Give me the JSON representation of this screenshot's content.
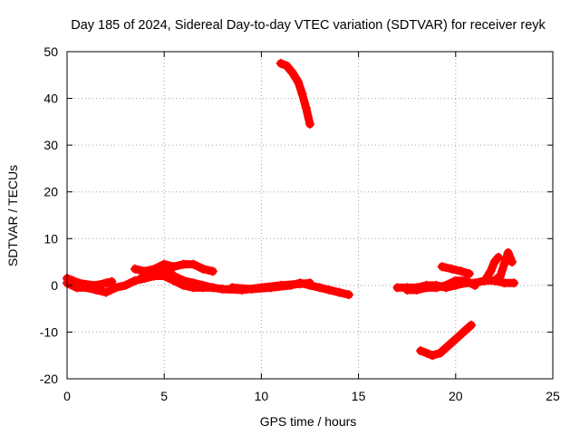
{
  "chart_data": {
    "type": "scatter",
    "title": "Day 185 of 2024, Sidereal Day-to-day VTEC variation (SDTVAR) for receiver reyk",
    "xlabel": "GPS time / hours",
    "ylabel": "SDTVAR / TECUs",
    "xlim": [
      0,
      25
    ],
    "ylim": [
      -20,
      50
    ],
    "xticks": [
      0,
      5,
      10,
      15,
      20,
      25
    ],
    "yticks": [
      -20,
      -10,
      0,
      10,
      20,
      30,
      40,
      50
    ],
    "xtick_labels": [
      "0",
      "5",
      "10",
      "15",
      "20",
      "25"
    ],
    "ytick_labels": [
      "-20",
      "-10",
      "0",
      "10",
      "20",
      "30",
      "40",
      "50"
    ],
    "grid": true,
    "marker": "+",
    "color": "#ff0000",
    "series": [
      {
        "name": "arc-lower-early",
        "points": [
          [
            0,
            0.5
          ],
          [
            0.5,
            -0.5
          ],
          [
            1,
            -0.5
          ],
          [
            1.5,
            -1
          ],
          [
            2,
            -1.5
          ],
          [
            2.5,
            -0.5
          ],
          [
            3,
            0
          ],
          [
            3.5,
            1
          ],
          [
            4,
            1.5
          ],
          [
            4.5,
            2
          ],
          [
            5,
            2
          ],
          [
            5.5,
            1
          ],
          [
            6,
            0
          ],
          [
            6.5,
            -0.5
          ],
          [
            7,
            -0.5
          ],
          [
            7.5,
            -0.5
          ],
          [
            8,
            -0.8
          ],
          [
            9,
            -1
          ],
          [
            10,
            -0.5
          ],
          [
            11,
            0
          ],
          [
            12,
            0.3
          ],
          [
            12.5,
            0.5
          ]
        ]
      },
      {
        "name": "arc-start-spread",
        "points": [
          [
            0,
            1.5
          ],
          [
            0.3,
            1
          ],
          [
            0.6,
            0.5
          ],
          [
            1,
            0.2
          ],
          [
            1.5,
            0
          ],
          [
            2,
            0.5
          ],
          [
            2.3,
            0.8
          ]
        ]
      },
      {
        "name": "arc-upper-early",
        "points": [
          [
            3.5,
            3.5
          ],
          [
            4,
            3
          ],
          [
            4.5,
            3.5
          ],
          [
            5,
            4.5
          ],
          [
            5.5,
            4
          ],
          [
            6,
            4.5
          ],
          [
            6.5,
            4.5
          ],
          [
            7,
            3.5
          ],
          [
            7.5,
            3
          ]
        ]
      },
      {
        "name": "arc-middle",
        "points": [
          [
            3.8,
            1.5
          ],
          [
            4.5,
            3
          ],
          [
            5,
            3.5
          ],
          [
            5.5,
            2
          ],
          [
            6,
            1
          ],
          [
            6.5,
            0.5
          ],
          [
            7,
            0
          ],
          [
            7.5,
            -0.5
          ]
        ]
      },
      {
        "name": "arc-noon",
        "points": [
          [
            8.5,
            -0.5
          ],
          [
            9.5,
            -0.8
          ],
          [
            10.5,
            -0.5
          ],
          [
            11.5,
            0
          ],
          [
            12,
            0.5
          ],
          [
            12.5,
            0
          ],
          [
            13,
            -0.5
          ],
          [
            13.5,
            -1
          ],
          [
            14,
            -1.5
          ],
          [
            14.5,
            -2
          ]
        ]
      },
      {
        "name": "arc-high",
        "points": [
          [
            11,
            47.5
          ],
          [
            11.3,
            47
          ],
          [
            11.6,
            45.5
          ],
          [
            11.9,
            43.5
          ],
          [
            12.1,
            41
          ],
          [
            12.3,
            38
          ],
          [
            12.5,
            34.5
          ]
        ]
      },
      {
        "name": "arc-evening-a",
        "points": [
          [
            17,
            -0.5
          ],
          [
            17.5,
            -0.5
          ],
          [
            18,
            -0.5
          ],
          [
            18.5,
            0
          ],
          [
            19,
            0
          ],
          [
            19.5,
            -0.5
          ],
          [
            20,
            0
          ],
          [
            20.5,
            0.5
          ],
          [
            21,
            0.5
          ],
          [
            21.5,
            1
          ],
          [
            22,
            1
          ],
          [
            22.5,
            0.5
          ],
          [
            23,
            0.5
          ]
        ]
      },
      {
        "name": "arc-evening-b",
        "points": [
          [
            17.5,
            -1
          ],
          [
            18,
            -1
          ],
          [
            18.5,
            -0.5
          ],
          [
            19,
            -0.5
          ],
          [
            19.5,
            0
          ],
          [
            20,
            1
          ],
          [
            20.5,
            1
          ],
          [
            21,
            0
          ]
        ]
      },
      {
        "name": "arc-evening-c",
        "points": [
          [
            19.3,
            4
          ],
          [
            19.8,
            3.5
          ],
          [
            20.3,
            3
          ],
          [
            20.7,
            2.5
          ]
        ]
      },
      {
        "name": "arc-evening-d",
        "points": [
          [
            21.5,
            1
          ],
          [
            21.8,
            3
          ],
          [
            22,
            5
          ],
          [
            22.2,
            6
          ]
        ]
      },
      {
        "name": "arc-evening-e",
        "points": [
          [
            22,
            1
          ],
          [
            22.3,
            2
          ],
          [
            22.5,
            4.5
          ],
          [
            22.7,
            7
          ],
          [
            22.9,
            5
          ]
        ]
      },
      {
        "name": "arc-low",
        "points": [
          [
            18.2,
            -14
          ],
          [
            18.5,
            -14.5
          ],
          [
            18.8,
            -15
          ],
          [
            19.2,
            -14.5
          ],
          [
            19.6,
            -13
          ],
          [
            20,
            -11.5
          ],
          [
            20.4,
            -10
          ],
          [
            20.8,
            -8.5
          ]
        ]
      }
    ]
  }
}
